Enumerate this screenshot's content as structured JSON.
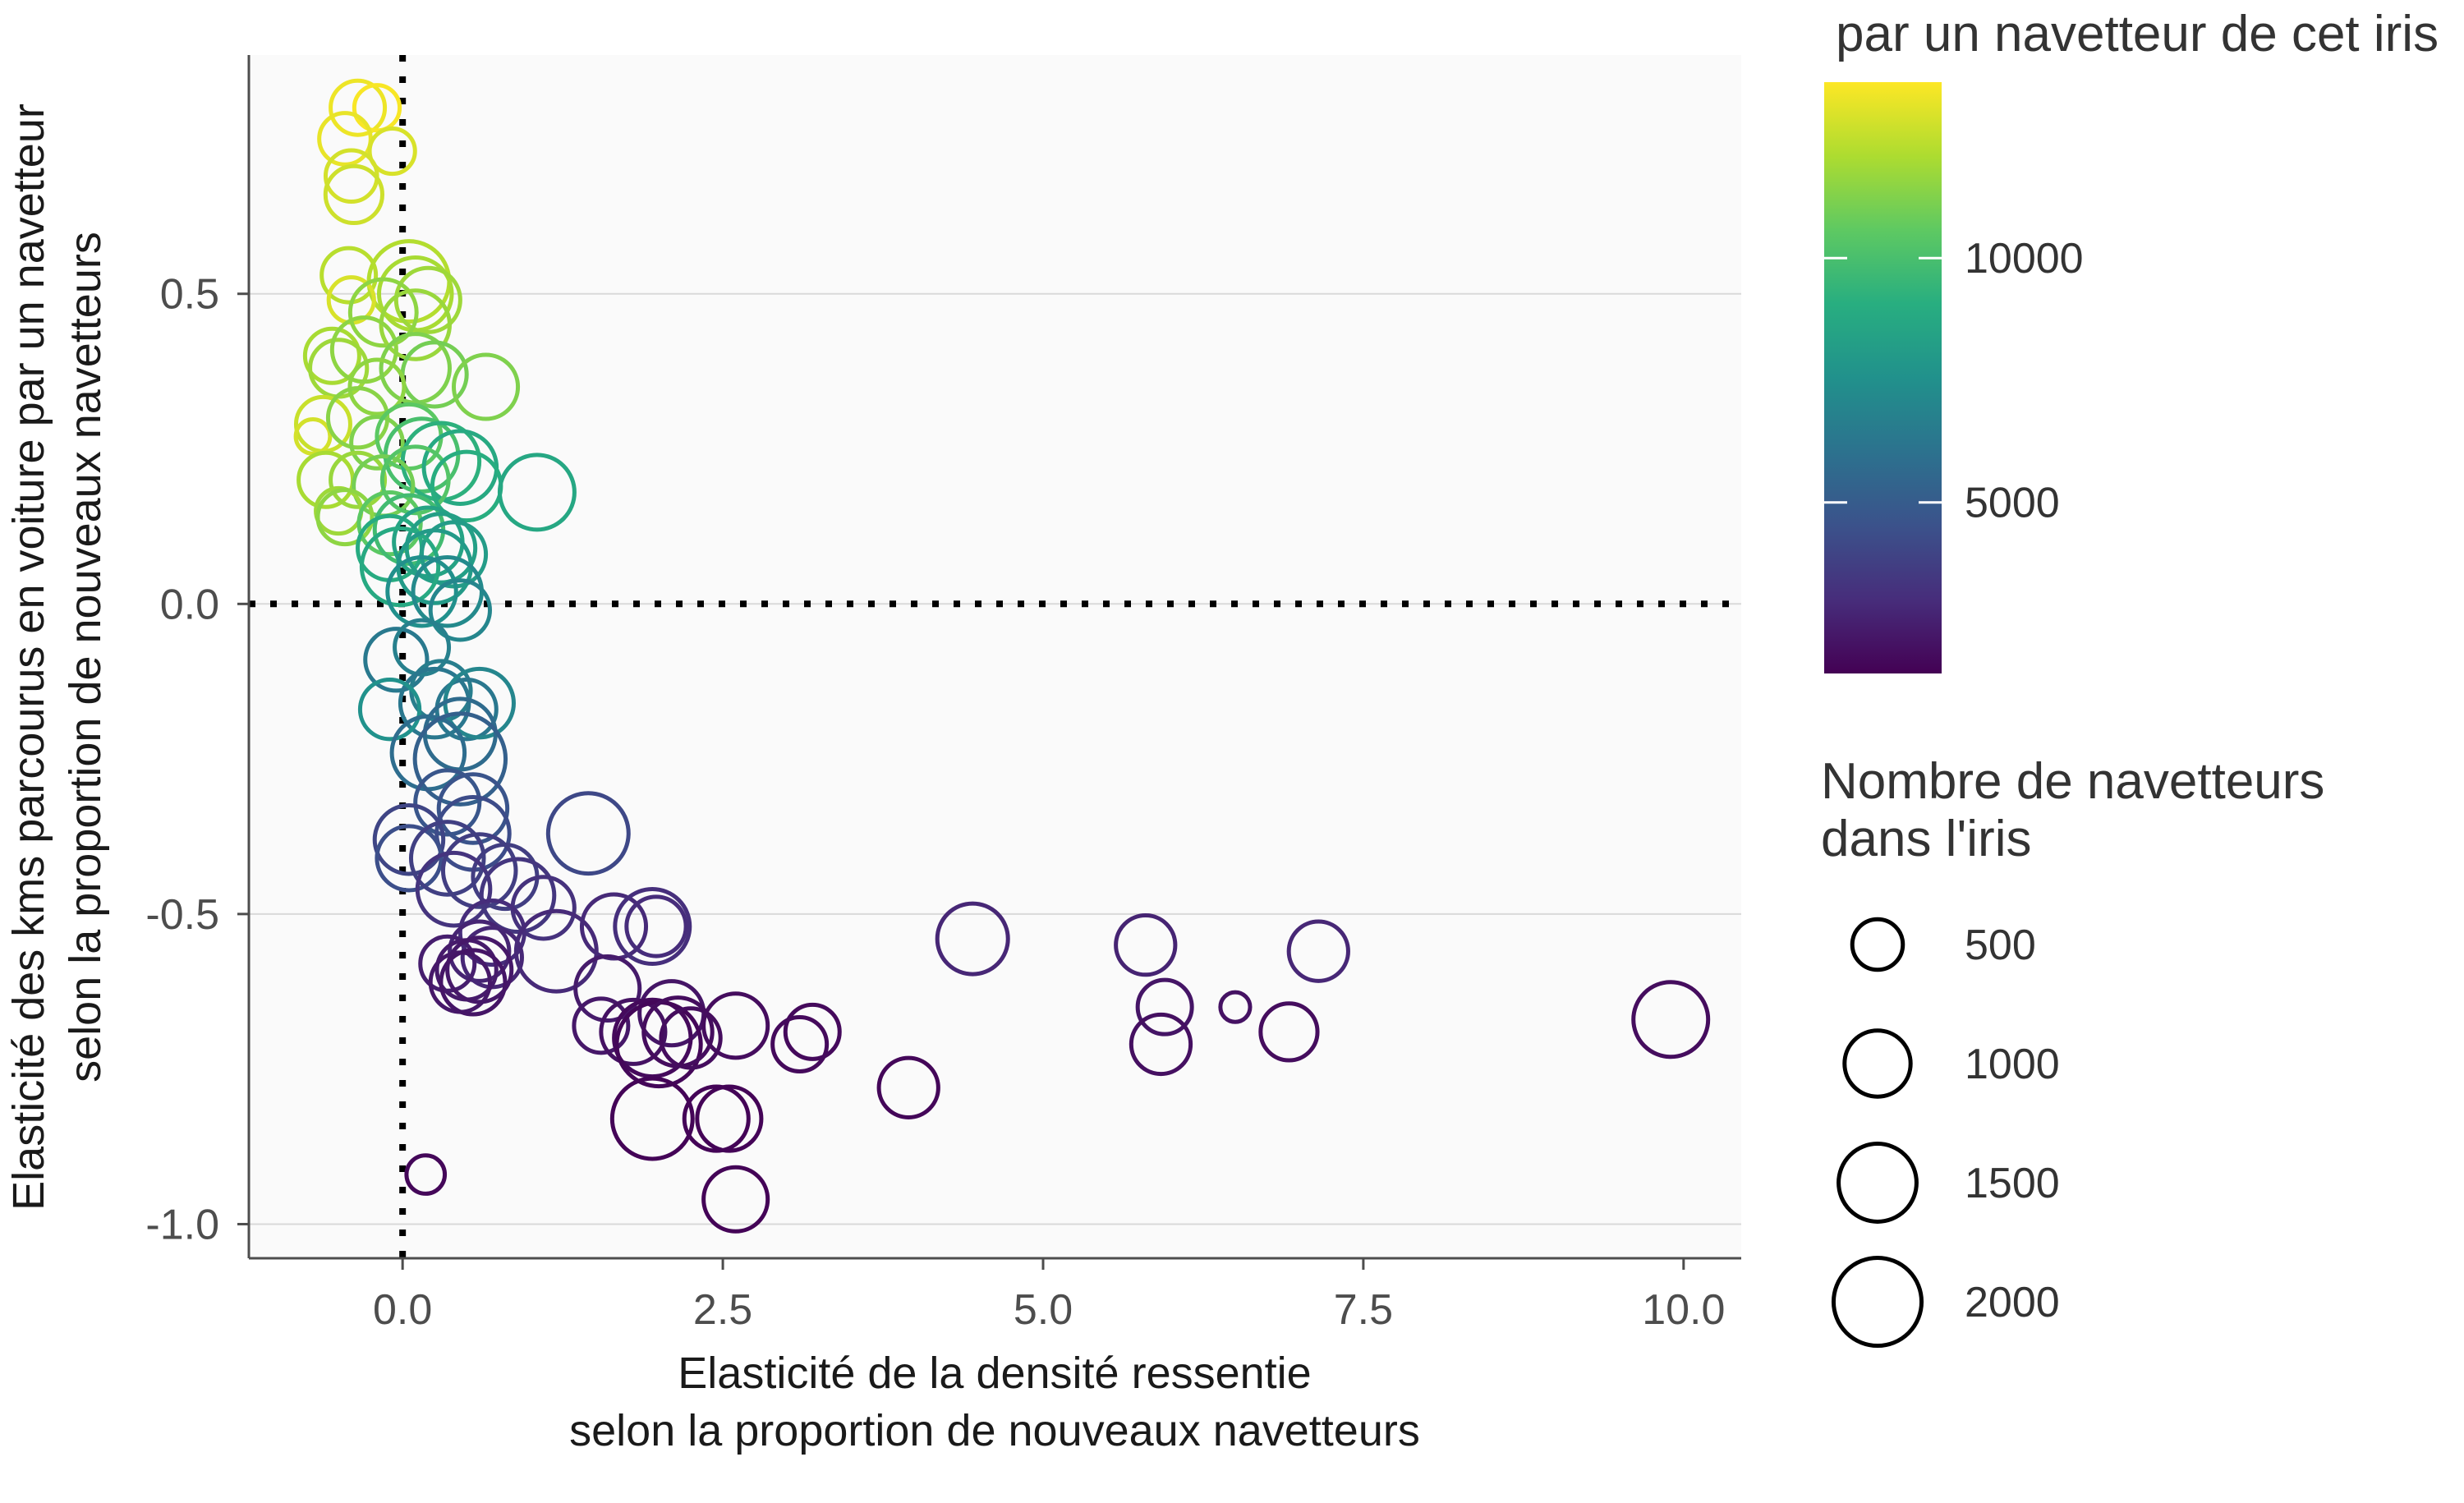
{
  "chart_data": {
    "type": "scatter",
    "xlabel": [
      "Elasticité de la densité ressentie",
      "selon la proportion de nouveaux navetteurs"
    ],
    "ylabel": [
      "Elasticité des kms parcourus en voiture par un navetteur",
      "selon la proportion de nouveaux navetteurs"
    ],
    "xlim": [
      -1.2,
      10.45
    ],
    "ylim": [
      -1.055,
      0.885
    ],
    "x_ticks": [
      0.0,
      2.5,
      5.0,
      7.5,
      10.0
    ],
    "x_tick_labels": [
      "0.0",
      "2.5",
      "5.0",
      "7.5",
      "10.0"
    ],
    "y_ticks": [
      -1.0,
      -0.5,
      0.0,
      0.5
    ],
    "y_tick_labels": [
      "-1.0",
      "-0.5",
      "0.0",
      "0.5"
    ],
    "grid": "horizontal",
    "reference_lines": {
      "x": 0,
      "y": 0,
      "style": "dotted"
    },
    "color_legend": {
      "title": "par un navetteur de cet iris",
      "scale": "viridis",
      "min": 1500,
      "max": 13600,
      "ticks": [
        5000,
        10000
      ],
      "tick_labels": [
        "5000",
        "10000"
      ]
    },
    "size_legend": {
      "title": [
        "Nombre de navetteurs",
        "dans l'iris"
      ],
      "values": [
        500,
        1000,
        1500,
        2000
      ],
      "labels": [
        "500",
        "1000",
        "1500",
        "2000"
      ]
    },
    "points": [
      {
        "x": -0.35,
        "y": 0.8,
        "size": 500,
        "color": 13300
      },
      {
        "x": -0.2,
        "y": 0.8,
        "size": 350,
        "color": 13500
      },
      {
        "x": -0.45,
        "y": 0.75,
        "size": 450,
        "color": 13200
      },
      {
        "x": -0.08,
        "y": 0.73,
        "size": 350,
        "color": 12900
      },
      {
        "x": -0.4,
        "y": 0.69,
        "size": 450,
        "color": 12800
      },
      {
        "x": -0.38,
        "y": 0.66,
        "size": 550,
        "color": 12700
      },
      {
        "x": -0.42,
        "y": 0.53,
        "size": 500,
        "color": 12300
      },
      {
        "x": 0.05,
        "y": 0.52,
        "size": 1100,
        "color": 12200
      },
      {
        "x": 0.1,
        "y": 0.5,
        "size": 900,
        "color": 12000
      },
      {
        "x": -0.4,
        "y": 0.49,
        "size": 350,
        "color": 12900
      },
      {
        "x": 0.2,
        "y": 0.49,
        "size": 700,
        "color": 11800
      },
      {
        "x": -0.15,
        "y": 0.47,
        "size": 750,
        "color": 11500
      },
      {
        "x": 0.1,
        "y": 0.45,
        "size": 800,
        "color": 11700
      },
      {
        "x": -0.55,
        "y": 0.4,
        "size": 500,
        "color": 12000
      },
      {
        "x": -0.5,
        "y": 0.38,
        "size": 550,
        "color": 11800
      },
      {
        "x": -0.3,
        "y": 0.41,
        "size": 700,
        "color": 11500
      },
      {
        "x": 0.1,
        "y": 0.38,
        "size": 800,
        "color": 11200
      },
      {
        "x": 0.25,
        "y": 0.37,
        "size": 700,
        "color": 11000
      },
      {
        "x": 0.65,
        "y": 0.35,
        "size": 700,
        "color": 11200
      },
      {
        "x": -0.2,
        "y": 0.35,
        "size": 500,
        "color": 11500
      },
      {
        "x": -0.62,
        "y": 0.29,
        "size": 500,
        "color": 12600
      },
      {
        "x": -0.7,
        "y": 0.27,
        "size": 200,
        "color": 12800
      },
      {
        "x": -0.35,
        "y": 0.3,
        "size": 600,
        "color": 11400
      },
      {
        "x": -0.2,
        "y": 0.26,
        "size": 450,
        "color": 11200
      },
      {
        "x": 0.05,
        "y": 0.27,
        "size": 700,
        "color": 10500
      },
      {
        "x": 0.15,
        "y": 0.24,
        "size": 900,
        "color": 10000
      },
      {
        "x": 0.3,
        "y": 0.23,
        "size": 1000,
        "color": 9200
      },
      {
        "x": 0.45,
        "y": 0.22,
        "size": 900,
        "color": 8800
      },
      {
        "x": -0.6,
        "y": 0.2,
        "size": 500,
        "color": 12000
      },
      {
        "x": -0.35,
        "y": 0.2,
        "size": 500,
        "color": 11700
      },
      {
        "x": -0.15,
        "y": 0.19,
        "size": 600,
        "color": 11000
      },
      {
        "x": 0.1,
        "y": 0.2,
        "size": 750,
        "color": 10300
      },
      {
        "x": 0.5,
        "y": 0.19,
        "size": 800,
        "color": 9000
      },
      {
        "x": 1.05,
        "y": 0.18,
        "size": 950,
        "color": 8700
      },
      {
        "x": -0.5,
        "y": 0.15,
        "size": 350,
        "color": 11800
      },
      {
        "x": -0.45,
        "y": 0.14,
        "size": 500,
        "color": 11500
      },
      {
        "x": -0.1,
        "y": 0.13,
        "size": 650,
        "color": 10500
      },
      {
        "x": 0.05,
        "y": 0.12,
        "size": 800,
        "color": 9800
      },
      {
        "x": -0.1,
        "y": 0.09,
        "size": 700,
        "color": 8900
      },
      {
        "x": 0.2,
        "y": 0.1,
        "size": 800,
        "color": 8500
      },
      {
        "x": 0.3,
        "y": 0.09,
        "size": 800,
        "color": 8300
      },
      {
        "x": 0.4,
        "y": 0.08,
        "size": 700,
        "color": 8100
      },
      {
        "x": -0.02,
        "y": 0.06,
        "size": 1000,
        "color": 8800
      },
      {
        "x": 0.25,
        "y": 0.06,
        "size": 900,
        "color": 8000
      },
      {
        "x": 0.15,
        "y": 0.02,
        "size": 800,
        "color": 7500
      },
      {
        "x": 0.35,
        "y": 0.02,
        "size": 800,
        "color": 7200
      },
      {
        "x": 0.45,
        "y": -0.01,
        "size": 600,
        "color": 7000
      },
      {
        "x": -0.05,
        "y": -0.09,
        "size": 650,
        "color": 6400
      },
      {
        "x": 0.15,
        "y": -0.07,
        "size": 500,
        "color": 6700
      },
      {
        "x": 0.3,
        "y": -0.14,
        "size": 600,
        "color": 6600
      },
      {
        "x": 0.25,
        "y": -0.16,
        "size": 800,
        "color": 6300
      },
      {
        "x": -0.1,
        "y": -0.17,
        "size": 600,
        "color": 7600
      },
      {
        "x": 0.5,
        "y": -0.17,
        "size": 600,
        "color": 6300
      },
      {
        "x": 0.6,
        "y": -0.16,
        "size": 800,
        "color": 7000
      },
      {
        "x": 0.45,
        "y": -0.21,
        "size": 850,
        "color": 5700
      },
      {
        "x": 0.2,
        "y": -0.24,
        "size": 900,
        "color": 5800
      },
      {
        "x": 0.45,
        "y": -0.25,
        "size": 1400,
        "color": 5200
      },
      {
        "x": 0.35,
        "y": -0.32,
        "size": 700,
        "color": 4700
      },
      {
        "x": 0.55,
        "y": -0.33,
        "size": 800,
        "color": 4600
      },
      {
        "x": 0.55,
        "y": -0.37,
        "size": 900,
        "color": 4300
      },
      {
        "x": 1.45,
        "y": -0.37,
        "size": 1100,
        "color": 4100
      },
      {
        "x": 0.05,
        "y": -0.38,
        "size": 800,
        "color": 4000
      },
      {
        "x": 0.05,
        "y": -0.41,
        "size": 700,
        "color": 4400
      },
      {
        "x": 0.35,
        "y": -0.41,
        "size": 900,
        "color": 3800
      },
      {
        "x": 0.6,
        "y": -0.43,
        "size": 900,
        "color": 3700
      },
      {
        "x": 0.8,
        "y": -0.44,
        "size": 700,
        "color": 3700
      },
      {
        "x": 0.4,
        "y": -0.46,
        "size": 900,
        "color": 3300
      },
      {
        "x": 0.9,
        "y": -0.47,
        "size": 900,
        "color": 3400
      },
      {
        "x": 1.1,
        "y": -0.49,
        "size": 650,
        "color": 3200
      },
      {
        "x": 0.7,
        "y": -0.53,
        "size": 700,
        "color": 3000
      },
      {
        "x": 1.65,
        "y": -0.52,
        "size": 700,
        "color": 2900
      },
      {
        "x": 1.95,
        "y": -0.52,
        "size": 950,
        "color": 3100
      },
      {
        "x": 1.98,
        "y": -0.52,
        "size": 600,
        "color": 3000
      },
      {
        "x": 0.6,
        "y": -0.56,
        "size": 600,
        "color": 2700
      },
      {
        "x": 0.7,
        "y": -0.57,
        "size": 600,
        "color": 2800
      },
      {
        "x": 1.2,
        "y": -0.56,
        "size": 1100,
        "color": 2900
      },
      {
        "x": 0.35,
        "y": -0.58,
        "size": 500,
        "color": 2500
      },
      {
        "x": 0.5,
        "y": -0.59,
        "size": 600,
        "color": 2400
      },
      {
        "x": 0.6,
        "y": -0.59,
        "size": 700,
        "color": 2300
      },
      {
        "x": 0.45,
        "y": -0.61,
        "size": 600,
        "color": 2300
      },
      {
        "x": 0.55,
        "y": -0.61,
        "size": 700,
        "color": 2200
      },
      {
        "x": 4.45,
        "y": -0.54,
        "size": 850,
        "color": 2800
      },
      {
        "x": 5.8,
        "y": -0.55,
        "size": 600,
        "color": 2700
      },
      {
        "x": 7.15,
        "y": -0.56,
        "size": 600,
        "color": 2800
      },
      {
        "x": 1.6,
        "y": -0.62,
        "size": 700,
        "color": 2400
      },
      {
        "x": 1.55,
        "y": -0.68,
        "size": 500,
        "color": 2300
      },
      {
        "x": 1.8,
        "y": -0.69,
        "size": 700,
        "color": 2100
      },
      {
        "x": 2.1,
        "y": -0.66,
        "size": 700,
        "color": 2200
      },
      {
        "x": 1.95,
        "y": -0.7,
        "size": 1000,
        "color": 1800
      },
      {
        "x": 2.0,
        "y": -0.71,
        "size": 1200,
        "color": 1700
      },
      {
        "x": 2.15,
        "y": -0.69,
        "size": 800,
        "color": 1900
      },
      {
        "x": 2.25,
        "y": -0.7,
        "size": 600,
        "color": 1900
      },
      {
        "x": 2.6,
        "y": -0.68,
        "size": 700,
        "color": 1900
      },
      {
        "x": 3.1,
        "y": -0.71,
        "size": 500,
        "color": 1800
      },
      {
        "x": 3.2,
        "y": -0.69,
        "size": 500,
        "color": 1800
      },
      {
        "x": 5.95,
        "y": -0.65,
        "size": 500,
        "color": 2200
      },
      {
        "x": 6.5,
        "y": -0.65,
        "size": 150,
        "color": 2100
      },
      {
        "x": 5.92,
        "y": -0.71,
        "size": 600,
        "color": 2000
      },
      {
        "x": 6.92,
        "y": -0.69,
        "size": 550,
        "color": 1900
      },
      {
        "x": 9.9,
        "y": -0.67,
        "size": 950,
        "color": 1900
      },
      {
        "x": 3.95,
        "y": -0.78,
        "size": 600,
        "color": 1700
      },
      {
        "x": 1.95,
        "y": -0.83,
        "size": 1100,
        "color": 1600
      },
      {
        "x": 2.45,
        "y": -0.83,
        "size": 700,
        "color": 1600
      },
      {
        "x": 2.55,
        "y": -0.83,
        "size": 700,
        "color": 1600
      },
      {
        "x": 2.6,
        "y": -0.96,
        "size": 700,
        "color": 1600
      },
      {
        "x": 0.18,
        "y": -0.92,
        "size": 250,
        "color": 1700
      }
    ]
  }
}
